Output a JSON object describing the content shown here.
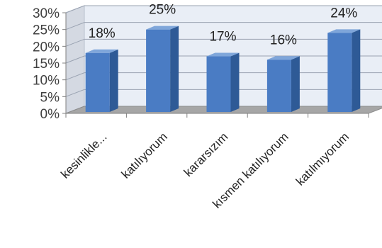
{
  "chart_data": {
    "type": "bar",
    "title": "",
    "xlabel": "",
    "ylabel": "",
    "categories": [
      "kesinlikle...",
      "katılıyorum",
      "kararsızım",
      "kısmen katılıyorum",
      "katılmıyorum"
    ],
    "values": [
      18,
      25,
      17,
      16,
      24
    ],
    "value_labels": [
      "18%",
      "25%",
      "17%",
      "16%",
      "24%"
    ],
    "ylim": [
      0,
      30
    ],
    "yticks": [
      0,
      5,
      10,
      15,
      20,
      25,
      30
    ],
    "ytick_labels": [
      "0%",
      "5%",
      "10%",
      "15%",
      "20%",
      "25%",
      "30%"
    ],
    "grid": true,
    "style": "3d-column",
    "colors": {
      "bar_front": "#4a7cc4",
      "bar_side": "#2e5a96",
      "bar_top": "#7fa6da",
      "wall": "#e9eef6",
      "floor": "#a6a6a6",
      "grid": "#ffffff"
    }
  }
}
